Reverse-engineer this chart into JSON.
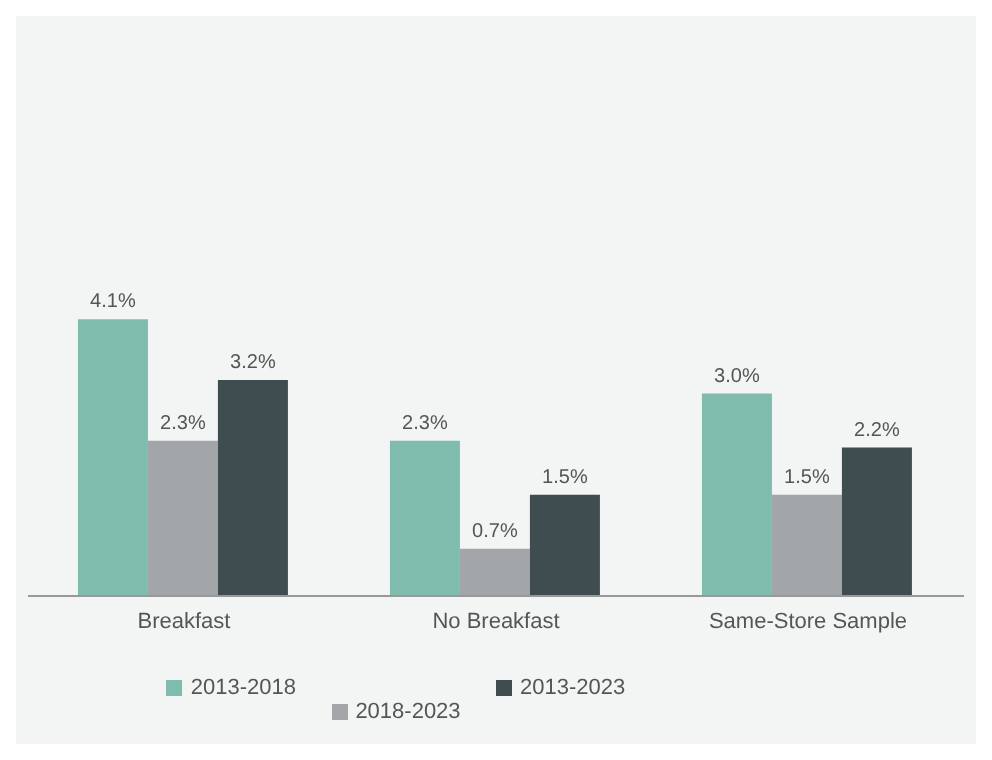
{
  "chart_data": {
    "type": "bar",
    "categories": [
      "Breakfast",
      "No Breakfast",
      "Same-Store Sample"
    ],
    "series": [
      {
        "name": "2013-2018",
        "color": "#7fbcae",
        "values": [
          4.1,
          2.3,
          3.0
        ],
        "value_labels": [
          "4.1%",
          "2.3%",
          "3.0%"
        ]
      },
      {
        "name": "2018-2023",
        "color": "#a3a6a8",
        "values": [
          2.3,
          0.7,
          1.5
        ],
        "value_labels": [
          "2.3%",
          "0.7%",
          "1.5%"
        ]
      },
      {
        "name": "2013-2023",
        "color": "#3f4d50",
        "values": [
          3.2,
          1.5,
          2.2
        ],
        "value_labels": [
          "3.2%",
          "1.5%",
          "2.2%"
        ]
      }
    ],
    "data_labels": true,
    "grid": false,
    "legend": "bottom",
    "tick_labels": "x"
  }
}
